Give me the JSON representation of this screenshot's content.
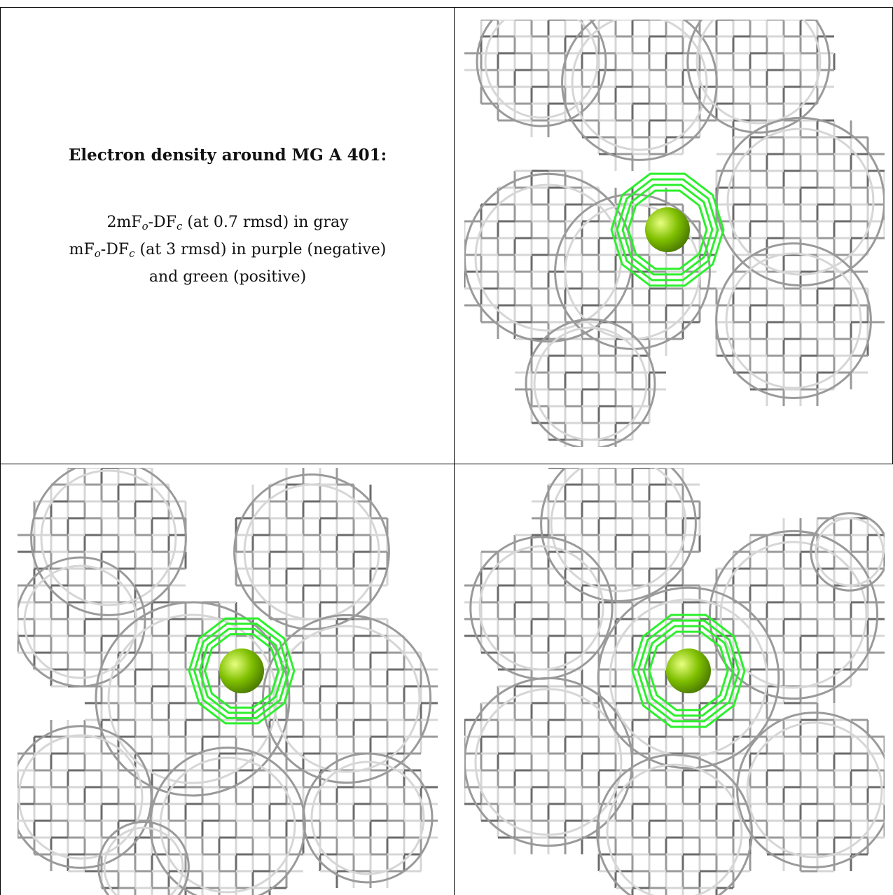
{
  "caption": {
    "title": "Electron density around MG A 401:",
    "line1_pre": "2mF",
    "line1_sub1": "o",
    "line1_mid": "-DF",
    "line1_sub2": "c",
    "line1_post": " (at 0.7 rmsd) in gray",
    "line2_pre": "mF",
    "line2_sub1": "o",
    "line2_mid": "-DF",
    "line2_sub2": "c",
    "line2_post": " (at 3 rmsd) in purple (negative)",
    "line3": "and green (positive)"
  },
  "colors": {
    "mesh_dark": "#6b6b6b",
    "mesh_mid": "#9a9a9a",
    "mesh_light": "#d6d6d6",
    "positive": "#2cf02c",
    "atom": "#7fbf00"
  },
  "panels": [
    {
      "name": "view-top-right"
    },
    {
      "name": "view-bottom-left"
    },
    {
      "name": "view-bottom-right"
    }
  ]
}
